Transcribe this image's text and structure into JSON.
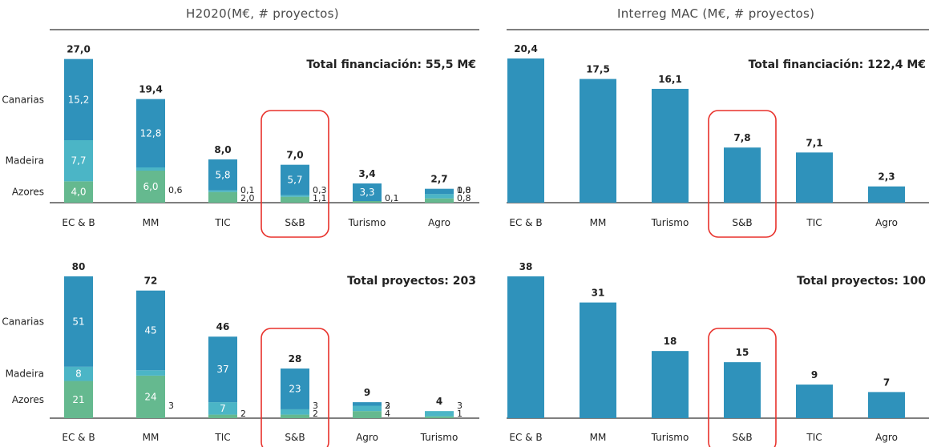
{
  "headers": {
    "left": "H2020(M€, # proyectos)",
    "right": "Interreg MAC (M€, # proyectos)"
  },
  "colors": {
    "canarias": "#2f92bb",
    "madeira": "#4bb5c6",
    "azores": "#65b98f",
    "bar": "#2f92bb",
    "highlight": "#e8312b"
  },
  "chart_data": [
    {
      "id": "h2020-funding",
      "type": "bar",
      "stacked": true,
      "annotation": "Total financiación: 55,5 M€",
      "series_labels": [
        "Canarias",
        "Madeira",
        "Azores"
      ],
      "categories": [
        "EC & B",
        "MM",
        "TIC",
        "S&B",
        "Turismo",
        "Agro"
      ],
      "series": [
        {
          "name": "Azores",
          "values": [
            4.0,
            6.0,
            2.0,
            1.1,
            0.1,
            0.8
          ]
        },
        {
          "name": "Madeira",
          "values": [
            7.7,
            0.6,
            0.1,
            0.3,
            0.0,
            0.8
          ]
        },
        {
          "name": "Canarias",
          "values": [
            15.2,
            12.8,
            5.8,
            5.7,
            3.3,
            1.0
          ]
        }
      ],
      "value_labels": {
        "Azores": [
          "4,0",
          "6,0",
          "2,0",
          "1,1",
          "0,1",
          "0,8"
        ],
        "Madeira": [
          "7,7",
          "0,6",
          "0,1",
          "0,3",
          "",
          "0,8"
        ],
        "Canarias": [
          "15,2",
          "12,8",
          "5,8",
          "5,7",
          "3,3",
          "1,0"
        ]
      },
      "totals": [
        "27,0",
        "19,4",
        "8,0",
        "7,0",
        "3,4",
        "2,7"
      ],
      "total_values": [
        27.0,
        19.4,
        8.0,
        7.0,
        3.4,
        2.7
      ],
      "ylim": [
        0,
        27
      ],
      "highlight": "S&B"
    },
    {
      "id": "interreg-funding",
      "type": "bar",
      "stacked": false,
      "annotation": "Total financiación: 122,4 M€",
      "categories": [
        "EC & B",
        "MM",
        "Turismo",
        "S&B",
        "TIC",
        "Agro"
      ],
      "values": [
        20.4,
        17.5,
        16.1,
        7.8,
        7.1,
        2.3
      ],
      "value_labels": [
        "20,4",
        "17,5",
        "16,1",
        "7,8",
        "7,1",
        "2,3"
      ],
      "ylim": [
        0,
        20.4
      ],
      "highlight": "S&B"
    },
    {
      "id": "h2020-projects",
      "type": "bar",
      "stacked": true,
      "annotation": "Total proyectos: 203",
      "series_labels": [
        "Canarias",
        "Madeira",
        "Azores"
      ],
      "categories": [
        "EC & B",
        "MM",
        "TIC",
        "S&B",
        "Agro",
        "Turismo"
      ],
      "series": [
        {
          "name": "Azores",
          "values": [
            21,
            24,
            2,
            2,
            4,
            1
          ]
        },
        {
          "name": "Madeira",
          "values": [
            8,
            3,
            7,
            3,
            3,
            3
          ]
        },
        {
          "name": "Canarias",
          "values": [
            51,
            45,
            37,
            23,
            2,
            0
          ]
        }
      ],
      "value_labels": {
        "Azores": [
          "21",
          "24",
          "2",
          "2",
          "4",
          "1"
        ],
        "Madeira": [
          "8",
          "3",
          "7",
          "3",
          "3",
          "3"
        ],
        "Canarias": [
          "51",
          "45",
          "37",
          "23",
          "2",
          ""
        ]
      },
      "totals": [
        "80",
        "72",
        "46",
        "28",
        "9",
        "4"
      ],
      "total_values": [
        80,
        72,
        46,
        28,
        9,
        4
      ],
      "ylim": [
        0,
        80
      ],
      "highlight": "S&B"
    },
    {
      "id": "interreg-projects",
      "type": "bar",
      "stacked": false,
      "annotation": "Total proyectos: 100",
      "categories": [
        "EC & B",
        "MM",
        "Turismo",
        "S&B",
        "TIC",
        "Agro"
      ],
      "values": [
        38,
        31,
        18,
        15,
        9,
        7
      ],
      "value_labels": [
        "38",
        "31",
        "18",
        "15",
        "9",
        "7"
      ],
      "ylim": [
        0,
        38
      ],
      "highlight": "S&B"
    }
  ]
}
